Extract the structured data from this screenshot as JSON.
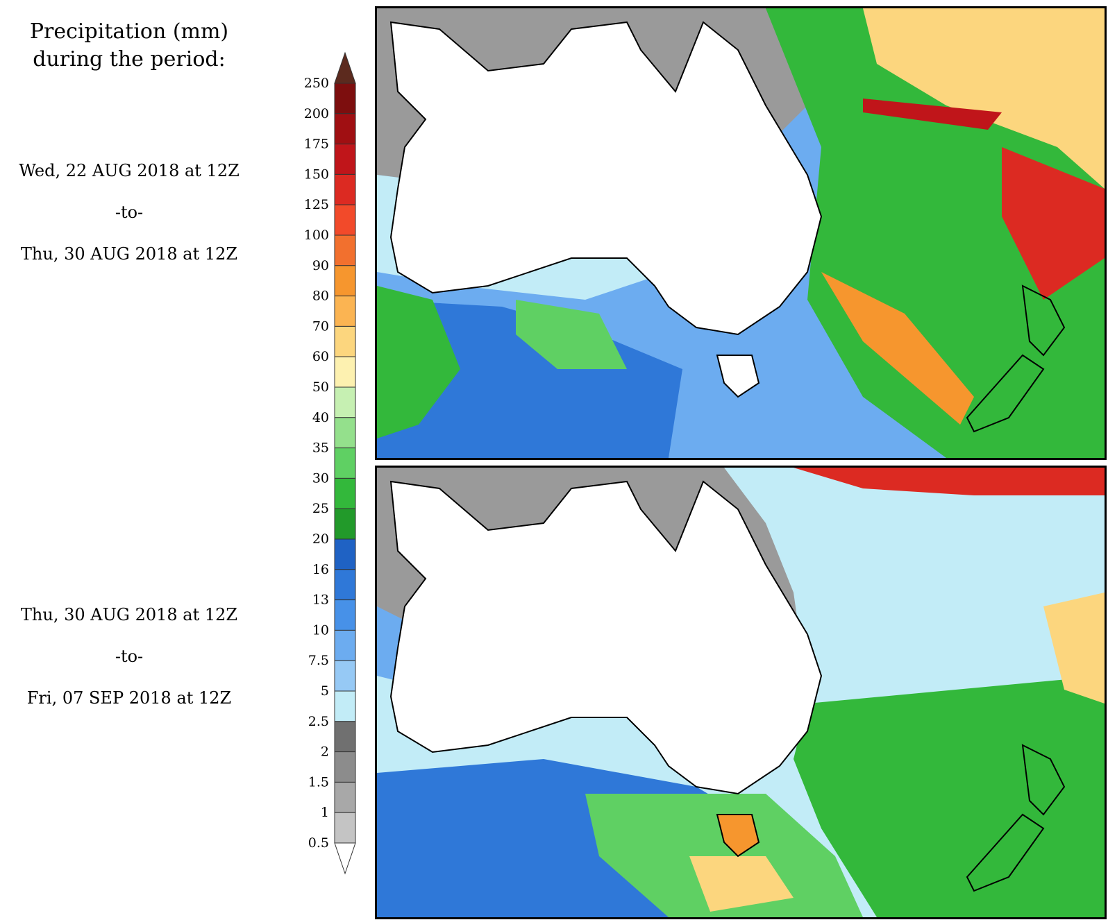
{
  "title": {
    "line1": "Precipitation (mm)",
    "line2": "during the period:"
  },
  "periods": [
    {
      "start": "Wed, 22 AUG 2018 at 12Z",
      "sep": "-to-",
      "end": "Thu, 30 AUG 2018 at 12Z"
    },
    {
      "start": "Thu, 30 AUG 2018 at 12Z",
      "sep": "-to-",
      "end": "Fri, 07 SEP 2018 at 12Z"
    }
  ],
  "legend": {
    "ticks": [
      "250",
      "200",
      "175",
      "150",
      "125",
      "100",
      "90",
      "80",
      "70",
      "60",
      "50",
      "40",
      "35",
      "30",
      "25",
      "20",
      "16",
      "13",
      "10",
      "7.5",
      "5",
      "2.5",
      "2",
      "1.5",
      "1",
      "0.5"
    ],
    "colors": [
      "#5c2a1e",
      "#7d0e0e",
      "#a00f12",
      "#c0151a",
      "#dc2a22",
      "#f24a2a",
      "#f2702e",
      "#f6962e",
      "#fbb452",
      "#fcd67e",
      "#fdf1b0",
      "#c6f0b2",
      "#94e08c",
      "#5fd063",
      "#33b83b",
      "#229a2a",
      "#1f62c4",
      "#2f78d8",
      "#4791e8",
      "#6cacf0",
      "#96c9f5",
      "#c2ecf7",
      "#707070",
      "#8c8c8c",
      "#a8a8a8",
      "#c4c4c4"
    ]
  },
  "maps": [
    {
      "name": "period-1-map",
      "region": "Australia and New Zealand"
    },
    {
      "name": "period-2-map",
      "region": "Australia and New Zealand"
    }
  ]
}
